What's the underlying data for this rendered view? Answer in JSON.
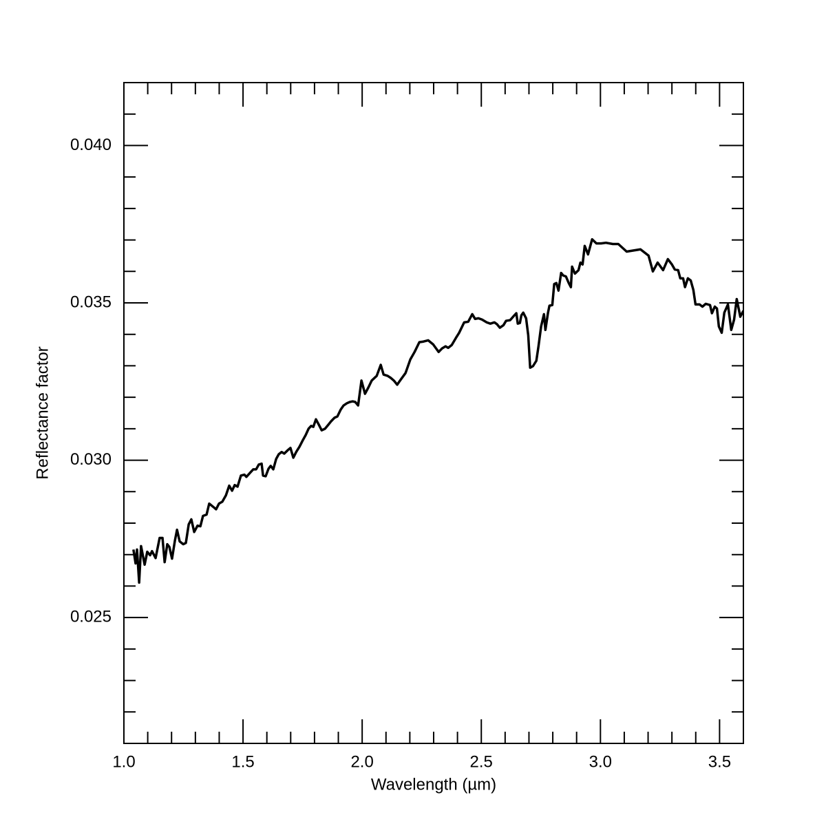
{
  "chart_data": {
    "type": "line",
    "xlabel": "Wavelength (µm)",
    "ylabel": "Reflectance factor",
    "xlim": [
      1.0,
      3.6
    ],
    "ylim": [
      0.021,
      0.042
    ],
    "xticks": [
      {
        "value": 1,
        "label": "1.0"
      },
      1.5,
      {
        "value": 2,
        "label": "2.0"
      },
      2.5,
      {
        "value": 3,
        "label": "3.0"
      },
      3.5
    ],
    "yticks": [
      0.025,
      {
        "value": 0.03,
        "label": "0.030"
      },
      0.035,
      {
        "value": 0.04,
        "label": "0.040"
      }
    ],
    "xminorticks": [
      1.1,
      1.2,
      1.3,
      1.4,
      1.6,
      1.7,
      1.8,
      1.9,
      2.1,
      2.2,
      2.3,
      2.4,
      2.6,
      2.7,
      2.8,
      2.9,
      3.1,
      3.2,
      3.3,
      3.4
    ],
    "yminorticks": [
      0.022,
      0.023,
      0.024,
      0.026,
      0.027,
      0.028,
      0.029,
      0.031,
      0.032,
      0.033,
      0.034,
      0.036,
      0.037,
      0.038,
      0.039,
      0.041
    ],
    "series": [
      {
        "color": "#000000",
        "x": [
          1.04,
          1.049,
          1.055,
          1.064,
          1.072,
          1.087,
          1.098,
          1.11,
          1.118,
          1.133,
          1.15,
          1.162,
          1.171,
          1.182,
          1.191,
          1.202,
          1.214,
          1.223,
          1.234,
          1.249,
          1.26,
          1.272,
          1.283,
          1.295,
          1.309,
          1.321,
          1.332,
          1.347,
          1.358,
          1.376,
          1.387,
          1.399,
          1.413,
          1.428,
          1.442,
          1.454,
          1.465,
          1.477,
          1.491,
          1.506,
          1.514,
          1.532,
          1.543,
          1.555,
          1.566,
          1.578,
          1.584,
          1.595,
          1.607,
          1.616,
          1.627,
          1.639,
          1.65,
          1.662,
          1.673,
          1.688,
          1.699,
          1.711,
          1.723,
          1.737,
          1.752,
          1.763,
          1.775,
          1.786,
          1.795,
          1.806,
          1.818,
          1.83,
          1.844,
          1.856,
          1.87,
          1.884,
          1.896,
          1.91,
          1.922,
          1.936,
          1.948,
          1.96,
          1.971,
          1.983,
          1.997,
          2.012,
          2.026,
          2.04,
          2.061,
          2.078,
          2.09,
          2.107,
          2.121,
          2.133,
          2.147,
          2.159,
          2.182,
          2.202,
          2.22,
          2.24,
          2.257,
          2.277,
          2.298,
          2.321,
          2.335,
          2.35,
          2.361,
          2.376,
          2.393,
          2.407,
          2.428,
          2.445,
          2.462,
          2.474,
          2.488,
          2.503,
          2.523,
          2.538,
          2.555,
          2.566,
          2.578,
          2.593,
          2.604,
          2.621,
          2.636,
          2.647,
          2.653,
          2.662,
          2.668,
          2.676,
          2.688,
          2.697,
          2.705,
          2.717,
          2.731,
          2.74,
          2.751,
          2.763,
          2.769,
          2.78,
          2.786,
          2.798,
          2.806,
          2.815,
          2.824,
          2.835,
          2.844,
          2.855,
          2.867,
          2.876,
          2.881,
          2.893,
          2.908,
          2.916,
          2.925,
          2.934,
          2.948,
          2.965,
          2.983,
          3.003,
          3.023,
          3.052,
          3.075,
          3.11,
          3.168,
          3.202,
          3.22,
          3.24,
          3.263,
          3.283,
          3.3,
          3.312,
          3.326,
          3.335,
          3.347,
          3.355,
          3.367,
          3.379,
          3.39,
          3.399,
          3.416,
          3.428,
          3.442,
          3.46,
          3.468,
          3.48,
          3.489,
          3.497,
          3.509,
          3.52,
          3.535,
          3.549,
          3.561,
          3.572,
          3.587,
          3.6
        ],
        "values": [
          0.02716,
          0.02672,
          0.02716,
          0.02611,
          0.02727,
          0.02668,
          0.02709,
          0.02698,
          0.02711,
          0.02689,
          0.02753,
          0.02753,
          0.02676,
          0.02733,
          0.02724,
          0.02687,
          0.02744,
          0.02779,
          0.02742,
          0.02733,
          0.02737,
          0.02796,
          0.02812,
          0.02772,
          0.02792,
          0.0279,
          0.02823,
          0.02827,
          0.02862,
          0.02851,
          0.02844,
          0.02862,
          0.02868,
          0.02888,
          0.02919,
          0.02903,
          0.02921,
          0.02916,
          0.02951,
          0.02954,
          0.02947,
          0.02962,
          0.02971,
          0.02971,
          0.02986,
          0.02989,
          0.02951,
          0.02949,
          0.02973,
          0.02982,
          0.02971,
          0.03004,
          0.03019,
          0.03026,
          0.03021,
          0.03032,
          0.03039,
          0.03008,
          0.03026,
          0.03043,
          0.03065,
          0.0308,
          0.031,
          0.03109,
          0.03106,
          0.0313,
          0.03113,
          0.03095,
          0.031,
          0.03111,
          0.03124,
          0.03135,
          0.03139,
          0.03161,
          0.03174,
          0.03181,
          0.03185,
          0.03187,
          0.03185,
          0.03174,
          0.03253,
          0.03211,
          0.03231,
          0.03253,
          0.03268,
          0.03303,
          0.03272,
          0.03268,
          0.03261,
          0.03253,
          0.0324,
          0.03253,
          0.03277,
          0.0332,
          0.03344,
          0.03375,
          0.03377,
          0.03381,
          0.03368,
          0.03344,
          0.03355,
          0.03362,
          0.03357,
          0.03366,
          0.03388,
          0.03405,
          0.03438,
          0.0344,
          0.03464,
          0.03449,
          0.03451,
          0.03447,
          0.03438,
          0.03434,
          0.03438,
          0.03432,
          0.03421,
          0.03429,
          0.03443,
          0.03445,
          0.03458,
          0.03467,
          0.03434,
          0.03436,
          0.0346,
          0.03469,
          0.03451,
          0.03397,
          0.03294,
          0.03299,
          0.03316,
          0.03362,
          0.03425,
          0.03464,
          0.03414,
          0.03469,
          0.03491,
          0.03493,
          0.0356,
          0.03563,
          0.03539,
          0.03595,
          0.03587,
          0.03584,
          0.03563,
          0.0355,
          0.03615,
          0.03593,
          0.03604,
          0.03628,
          0.03622,
          0.03681,
          0.03654,
          0.03702,
          0.03689,
          0.03689,
          0.03691,
          0.03687,
          0.03687,
          0.03663,
          0.0367,
          0.0365,
          0.036,
          0.03628,
          0.03604,
          0.03639,
          0.03622,
          0.03606,
          0.03604,
          0.03578,
          0.03578,
          0.0355,
          0.03578,
          0.03571,
          0.03541,
          0.03495,
          0.03495,
          0.03488,
          0.03497,
          0.03493,
          0.03467,
          0.03488,
          0.03482,
          0.03425,
          0.03405,
          0.03469,
          0.03495,
          0.03414,
          0.03447,
          0.03512,
          0.03456,
          0.03475
        ]
      }
    ]
  }
}
